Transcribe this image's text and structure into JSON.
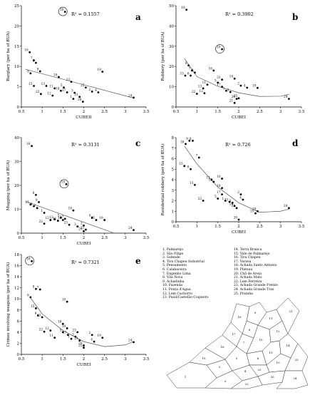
{
  "chart_data": [
    {
      "id": "a",
      "panel_letter": "a",
      "type": "scatter",
      "r2": "R² = 0.1557",
      "ylabel": "Burglary (per ha of BUA)",
      "xlabel": "CUBEII",
      "xlim": [
        0.5,
        3.5
      ],
      "ylim": [
        0,
        25
      ],
      "xticks": [
        "0.5",
        "1",
        "1.5",
        "2",
        "2.5",
        "3",
        "3.5"
      ],
      "yticks": [
        "0",
        "5",
        "10",
        "15",
        "20",
        "25"
      ],
      "fit": "linear",
      "trend": [
        [
          0.6,
          9.3
        ],
        [
          3.2,
          2.2
        ]
      ],
      "circled": "10",
      "points": [
        {
          "id": "16",
          "x": 0.7,
          "y": 13.5
        },
        {
          "id": "8",
          "x": 0.72,
          "y": 8.3
        },
        {
          "id": "7",
          "x": 0.8,
          "y": 11.5
        },
        {
          "id": "6",
          "x": 0.85,
          "y": 10.9
        },
        {
          "id": "9",
          "x": 0.95,
          "y": 8.8
        },
        {
          "id": "15",
          "x": 0.8,
          "y": 5.2
        },
        {
          "id": "22",
          "x": 0.97,
          "y": 3.2
        },
        {
          "id": "13",
          "x": 1.1,
          "y": 5.2
        },
        {
          "id": "12",
          "x": 1.25,
          "y": 2.8
        },
        {
          "id": "11",
          "x": 1.3,
          "y": 4.6
        },
        {
          "id": "14",
          "x": 1.45,
          "y": 4.0
        },
        {
          "id": "18",
          "x": 1.4,
          "y": 7.4
        },
        {
          "id": "10",
          "x": 1.55,
          "y": 23.5
        },
        {
          "id": "5",
          "x": 1.52,
          "y": 4.8
        },
        {
          "id": "17",
          "x": 1.6,
          "y": 3.6
        },
        {
          "id": "23",
          "x": 1.7,
          "y": 6.2
        },
        {
          "id": "1",
          "x": 1.75,
          "y": 2.0
        },
        {
          "id": "3",
          "x": 1.78,
          "y": 3.5
        },
        {
          "id": "21",
          "x": 1.9,
          "y": 2.5
        },
        {
          "id": "20",
          "x": 1.98,
          "y": 1.3
        },
        {
          "id": "25",
          "x": 2.05,
          "y": 4.8
        },
        {
          "id": "2",
          "x": 2.2,
          "y": 3.8
        },
        {
          "id": "4",
          "x": 2.35,
          "y": 3.6
        },
        {
          "id": "19",
          "x": 2.45,
          "y": 8.7
        },
        {
          "id": "24",
          "x": 3.2,
          "y": 2.3
        }
      ]
    },
    {
      "id": "b",
      "panel_letter": "b",
      "type": "scatter",
      "r2": "R² = 0.3902",
      "ylabel": "Robbery (per ha of BUA)",
      "xlabel": "CUBEI",
      "xlim": [
        0.5,
        3.5
      ],
      "ylim": [
        0,
        50
      ],
      "xticks": [
        "0.5",
        "1",
        "1.5",
        "2",
        "2.5",
        "3",
        "3.5"
      ],
      "yticks": [
        "0",
        "10",
        "20",
        "30",
        "40",
        "50"
      ],
      "fit": "poly",
      "trend": [
        [
          0.7,
          24
        ],
        [
          1.0,
          15
        ],
        [
          1.5,
          10.2
        ],
        [
          2.0,
          7.0
        ],
        [
          2.5,
          5.2
        ],
        [
          3.0,
          5.3
        ],
        [
          3.2,
          6.2
        ]
      ],
      "circled": "10",
      "points": [
        {
          "id": "16",
          "x": 0.75,
          "y": 48
        },
        {
          "id": "8",
          "x": 0.8,
          "y": 20.5
        },
        {
          "id": "7",
          "x": 0.88,
          "y": 18
        },
        {
          "id": "6",
          "x": 0.85,
          "y": 15.5
        },
        {
          "id": "15",
          "x": 0.72,
          "y": 15.5
        },
        {
          "id": "9",
          "x": 0.95,
          "y": 17
        },
        {
          "id": "22",
          "x": 1.0,
          "y": 6.5
        },
        {
          "id": "12",
          "x": 1.18,
          "y": 6.8
        },
        {
          "id": "13",
          "x": 1.15,
          "y": 9.2
        },
        {
          "id": "11",
          "x": 1.25,
          "y": 11
        },
        {
          "id": "18",
          "x": 1.4,
          "y": 18
        },
        {
          "id": "14",
          "x": 1.9,
          "y": 14
        },
        {
          "id": "10",
          "x": 1.6,
          "y": 28.5
        },
        {
          "id": "5",
          "x": 1.5,
          "y": 12
        },
        {
          "id": "17",
          "x": 1.6,
          "y": 10
        },
        {
          "id": "1",
          "x": 1.7,
          "y": 8
        },
        {
          "id": "3",
          "x": 1.8,
          "y": 7.4
        },
        {
          "id": "23",
          "x": 1.6,
          "y": 13.5
        },
        {
          "id": "21",
          "x": 1.9,
          "y": 2
        },
        {
          "id": "20",
          "x": 1.95,
          "y": 4.0
        },
        {
          "id": "25",
          "x": 2.0,
          "y": 4.3
        },
        {
          "id": "2",
          "x": 2.05,
          "y": 10.5
        },
        {
          "id": "4",
          "x": 2.2,
          "y": 9.5
        },
        {
          "id": "19",
          "x": 2.45,
          "y": 9.4
        },
        {
          "id": "24",
          "x": 3.2,
          "y": 4.0
        }
      ]
    },
    {
      "id": "c",
      "panel_letter": "c",
      "type": "scatter",
      "r2": "R² = 0.3131",
      "ylabel": "Mugging (per ha of BUA)",
      "xlabel": "CUBEI",
      "xlim": [
        0.5,
        3.5
      ],
      "ylim": [
        0,
        40
      ],
      "xticks": [
        "0.5",
        "1",
        "1.5",
        "2",
        "2.5",
        "3",
        "3.5"
      ],
      "yticks": [
        "0",
        "10",
        "20",
        "30",
        "40"
      ],
      "fit": "linear",
      "trend": [
        [
          0.6,
          13.3
        ],
        [
          2.7,
          0.2
        ]
      ],
      "circled": "10",
      "points": [
        {
          "id": "16",
          "x": 0.75,
          "y": 36.5
        },
        {
          "id": "8",
          "x": 0.85,
          "y": 16
        },
        {
          "id": "7",
          "x": 0.88,
          "y": 10.5
        },
        {
          "id": "9",
          "x": 0.92,
          "y": 13
        },
        {
          "id": "15",
          "x": 0.72,
          "y": 12
        },
        {
          "id": "6",
          "x": 0.8,
          "y": 11.3
        },
        {
          "id": "1",
          "x": 1.05,
          "y": 8.5
        },
        {
          "id": "22",
          "x": 1.05,
          "y": 4
        },
        {
          "id": "12",
          "x": 1.2,
          "y": 5.5
        },
        {
          "id": "13",
          "x": 1.3,
          "y": 5.8
        },
        {
          "id": "11",
          "x": 1.38,
          "y": 5.2
        },
        {
          "id": "14",
          "x": 1.5,
          "y": 5.5
        },
        {
          "id": "10",
          "x": 1.58,
          "y": 20.5
        },
        {
          "id": "5",
          "x": 1.45,
          "y": 6.5
        },
        {
          "id": "17",
          "x": 1.55,
          "y": 6.0
        },
        {
          "id": "23",
          "x": 1.65,
          "y": 3.5
        },
        {
          "id": "18",
          "x": 1.75,
          "y": 9.5
        },
        {
          "id": "3",
          "x": 1.85,
          "y": 2.8
        },
        {
          "id": "2",
          "x": 2.0,
          "y": 3.2
        },
        {
          "id": "21",
          "x": 2.05,
          "y": 1.5
        },
        {
          "id": "20",
          "x": 2.0,
          "y": 0.8
        },
        {
          "id": "25",
          "x": 2.3,
          "y": 5.5
        },
        {
          "id": "4",
          "x": 2.2,
          "y": 6.5
        },
        {
          "id": "19",
          "x": 2.5,
          "y": 5.5
        },
        {
          "id": "24",
          "x": 3.2,
          "y": 1.3
        }
      ]
    },
    {
      "id": "d",
      "panel_letter": "d",
      "type": "scatter",
      "r2": "R² = 0.726",
      "ylabel": "Residential robbery (per ha of BUA)",
      "xlabel": "CUBEI",
      "xlim": [
        0.5,
        3.5
      ],
      "ylim": [
        0,
        8
      ],
      "xticks": [
        "0.5",
        "1",
        "1.5",
        "2",
        "2.5",
        "3",
        "3.5"
      ],
      "yticks": [
        "0",
        "1",
        "2",
        "3",
        "4",
        "5",
        "6",
        "7",
        "8"
      ],
      "fit": "poly",
      "trend": [
        [
          0.7,
          7.2
        ],
        [
          1.0,
          5.5
        ],
        [
          1.5,
          3.3
        ],
        [
          2.0,
          1.8
        ],
        [
          2.5,
          0.9
        ],
        [
          3.0,
          1.0
        ],
        [
          3.2,
          1.2
        ]
      ],
      "circled": "",
      "points": [
        {
          "id": "16",
          "x": 0.73,
          "y": 7.4
        },
        {
          "id": "9",
          "x": 0.82,
          "y": 7.7
        },
        {
          "id": "8",
          "x": 0.9,
          "y": 7.7
        },
        {
          "id": "7",
          "x": 1.05,
          "y": 6.1
        },
        {
          "id": "15",
          "x": 0.7,
          "y": 5.3
        },
        {
          "id": "6",
          "x": 0.85,
          "y": 5.0
        },
        {
          "id": "13",
          "x": 0.95,
          "y": 3.5
        },
        {
          "id": "22",
          "x": 1.15,
          "y": 2.0
        },
        {
          "id": "11",
          "x": 1.35,
          "y": 4.0
        },
        {
          "id": "12",
          "x": 1.4,
          "y": 3.8
        },
        {
          "id": "10",
          "x": 1.6,
          "y": 4.1
        },
        {
          "id": "5",
          "x": 1.5,
          "y": 2.2
        },
        {
          "id": "17",
          "x": 1.6,
          "y": 2.6
        },
        {
          "id": "1",
          "x": 1.68,
          "y": 2.0
        },
        {
          "id": "18",
          "x": 1.6,
          "y": 3.2
        },
        {
          "id": "23",
          "x": 1.78,
          "y": 1.9
        },
        {
          "id": "3",
          "x": 1.85,
          "y": 1.8
        },
        {
          "id": "14",
          "x": 1.9,
          "y": 1.5
        },
        {
          "id": "21",
          "x": 1.95,
          "y": 1.3
        },
        {
          "id": "2",
          "x": 2.05,
          "y": 2.6
        },
        {
          "id": "4",
          "x": 2.1,
          "y": 2.1
        },
        {
          "id": "25",
          "x": 2.4,
          "y": 0.8
        },
        {
          "id": "19",
          "x": 2.45,
          "y": 1.0
        },
        {
          "id": "20",
          "x": 2.0,
          "y": 0.2
        },
        {
          "id": "24",
          "x": 3.2,
          "y": 1.3
        }
      ]
    },
    {
      "id": "e",
      "panel_letter": "e",
      "type": "scatter",
      "r2": "R² = 0.7321",
      "ylabel": "Crimes involving weapons (per ha of BUA)",
      "xlabel": "CUBEI",
      "xlim": [
        0.5,
        3.5
      ],
      "ylim": [
        0,
        18
      ],
      "xticks": [
        "0.5",
        "1",
        "1.5",
        "2",
        "2.5",
        "3",
        "3.5"
      ],
      "yticks": [
        "0",
        "2",
        "4",
        "6",
        "8",
        "10",
        "12",
        "14",
        "16",
        "18"
      ],
      "fit": "poly",
      "trend": [
        [
          0.7,
          10.4
        ],
        [
          1.0,
          7.3
        ],
        [
          1.5,
          4.3
        ],
        [
          2.0,
          2.3
        ],
        [
          2.5,
          1.4
        ],
        [
          3.0,
          1.7
        ],
        [
          3.2,
          2.3
        ]
      ],
      "circled": "16",
      "points": [
        {
          "id": "16",
          "x": 0.75,
          "y": 16.8
        },
        {
          "id": "6",
          "x": 0.72,
          "y": 10.3
        },
        {
          "id": "8",
          "x": 0.85,
          "y": 11.8
        },
        {
          "id": "7",
          "x": 0.95,
          "y": 11.7
        },
        {
          "id": "15",
          "x": 0.85,
          "y": 8.3
        },
        {
          "id": "9",
          "x": 0.9,
          "y": 7.0
        },
        {
          "id": "13",
          "x": 1.0,
          "y": 6.7
        },
        {
          "id": "22",
          "x": 1.05,
          "y": 4.1
        },
        {
          "id": "12",
          "x": 1.2,
          "y": 4.3
        },
        {
          "id": "11",
          "x": 1.3,
          "y": 3.0
        },
        {
          "id": "18",
          "x": 1.5,
          "y": 5.5
        },
        {
          "id": "10",
          "x": 1.6,
          "y": 9.5
        },
        {
          "id": "14",
          "x": 1.6,
          "y": 4.7
        },
        {
          "id": "5",
          "x": 1.5,
          "y": 4.0
        },
        {
          "id": "17",
          "x": 1.62,
          "y": 3.5
        },
        {
          "id": "1",
          "x": 1.7,
          "y": 2.8
        },
        {
          "id": "23",
          "x": 1.85,
          "y": 4.0
        },
        {
          "id": "3",
          "x": 1.8,
          "y": 3.2
        },
        {
          "id": "21",
          "x": 1.9,
          "y": 2.5
        },
        {
          "id": "20",
          "x": 2.0,
          "y": 1.6
        },
        {
          "id": "25",
          "x": 2.0,
          "y": 1.2
        },
        {
          "id": "2",
          "x": 2.2,
          "y": 3.5
        },
        {
          "id": "4",
          "x": 2.25,
          "y": 2.3
        },
        {
          "id": "19",
          "x": 2.45,
          "y": 3.0
        },
        {
          "id": "24",
          "x": 3.2,
          "y": 2.2
        }
      ]
    }
  ],
  "legend": [
    "1. Palmarejo",
    "2. São Filipe",
    "3. Safende",
    "4. Tira Chapeu Industrial",
    "5. Pensamento",
    "6. Calabaceira",
    "7. Engenho Lima",
    "8. Vila Nova",
    "9. Achadinha",
    "10. Fazenda",
    "11. Ponta d'Agua",
    "12. Lem Cachorro",
    "13. Paiol/Castelão-Coqueiro",
    "14. Terra Branca",
    "15. Vale de Palmarejo",
    "16. Tira Chapeu",
    "17. Varzea",
    "18. Achada Santo Antonio",
    "19. Plateau",
    "20. Chã de Areia",
    "21. Achada Mato",
    "22. Lem Ferreira",
    "23. Achada Grande Frente",
    "24. Achada Grande Tras",
    "25. Prainha"
  ],
  "map_labels": [
    "1",
    "2",
    "3",
    "4",
    "5",
    "6",
    "7",
    "8",
    "9",
    "10",
    "11",
    "12",
    "13",
    "14",
    "15",
    "16",
    "17",
    "18",
    "19",
    "20",
    "21",
    "22",
    "23",
    "24",
    "25"
  ]
}
